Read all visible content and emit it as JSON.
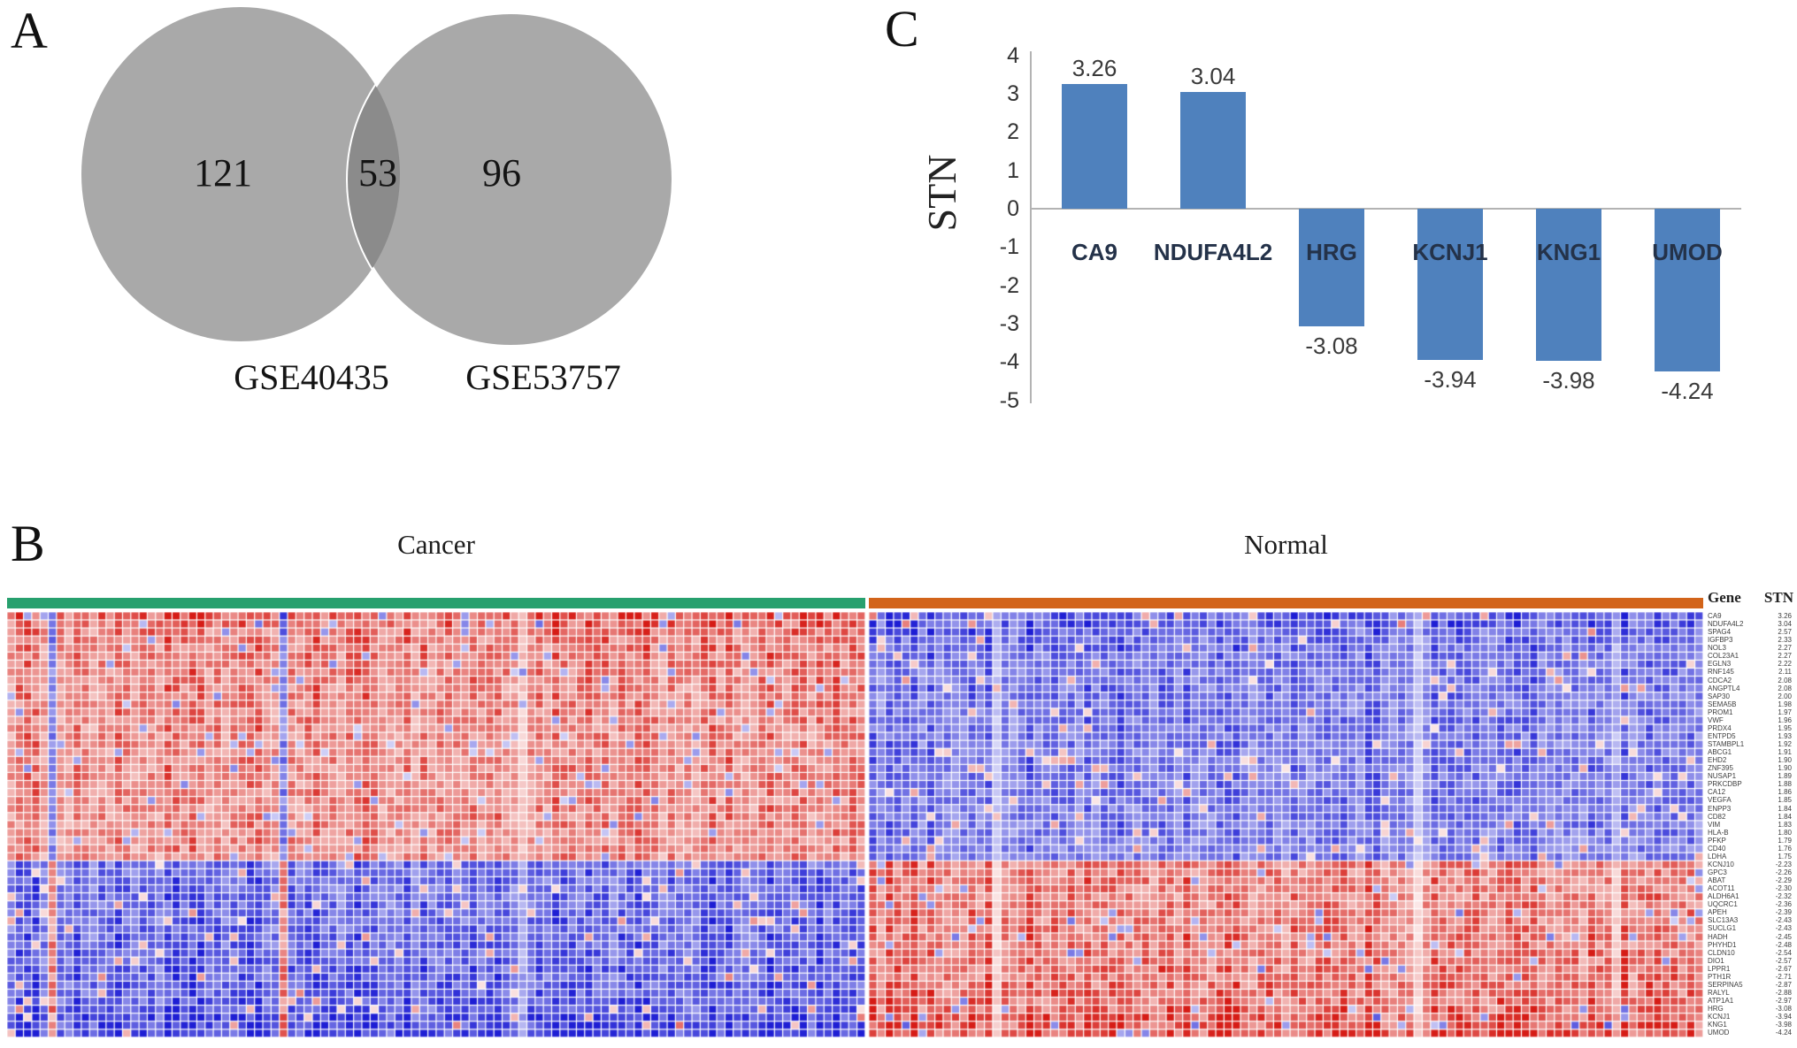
{
  "figure": {
    "panel_a": {
      "label": "A",
      "left_count": "121",
      "overlap_count": "53",
      "right_count": "96",
      "left_dataset": "GSE40435",
      "right_dataset": "GSE53757"
    },
    "panel_b": {
      "label": "B",
      "left_group": "Cancer",
      "right_group": "Normal",
      "gene_header": "Gene",
      "stn_header": "STN"
    },
    "panel_c": {
      "label": "C",
      "y_axis_label": "STN"
    }
  },
  "colors": {
    "venn_fill": "#a9a9a9",
    "venn_overlap": "#8b8b8b",
    "venn_divider": "#ffffff",
    "cancer_group": "#27a06e",
    "normal_group": "#d2641a",
    "bar_fill": "#4f81bd",
    "axis_gray": "#b3b3b3",
    "heat_red": "#d61c16",
    "heat_blue": "#1e1ed4"
  },
  "chart_data": [
    {
      "type": "venn",
      "sets": [
        "GSE40435",
        "GSE53757"
      ],
      "left_only": 121,
      "overlap": 53,
      "right_only": 96
    },
    {
      "type": "bar",
      "title": "",
      "xlabel": "",
      "ylabel": "STN",
      "ylim": [
        -5,
        4
      ],
      "yticks": [
        4,
        3,
        2,
        1,
        0,
        -1,
        -2,
        -3,
        -4,
        -5
      ],
      "grid": false,
      "legend": false,
      "categories": [
        "CA9",
        "NDUFA4L2",
        "HRG",
        "KCNJ1",
        "KNG1",
        "UMOD"
      ],
      "values": [
        3.26,
        3.04,
        -3.08,
        -3.94,
        -3.98,
        -4.24
      ],
      "value_labels": [
        "3.26",
        "3.04",
        "-3.08",
        "-3.94",
        "-3.98",
        "-4.24"
      ]
    },
    {
      "type": "heatmap",
      "col_groups": [
        {
          "label": "Cancer",
          "columns": 104
        },
        {
          "label": "Normal",
          "columns": 101
        }
      ],
      "legend_headers": [
        "Gene",
        "STN"
      ],
      "color_meaning": {
        "red": "high expression",
        "blue": "low expression"
      },
      "rows": [
        {
          "gene": "CA9",
          "stn": 3.26
        },
        {
          "gene": "NDUFA4L2",
          "stn": 3.04
        },
        {
          "gene": "SPAG4",
          "stn": 2.57
        },
        {
          "gene": "IGFBP3",
          "stn": 2.33
        },
        {
          "gene": "NOL3",
          "stn": 2.27
        },
        {
          "gene": "COL23A1",
          "stn": 2.27
        },
        {
          "gene": "EGLN3",
          "stn": 2.22
        },
        {
          "gene": "RNF145",
          "stn": 2.11
        },
        {
          "gene": "CDCA2",
          "stn": 2.08
        },
        {
          "gene": "ANGPTL4",
          "stn": 2.08
        },
        {
          "gene": "SAP30",
          "stn": 2.0
        },
        {
          "gene": "SEMA5B",
          "stn": 1.98
        },
        {
          "gene": "PROM1",
          "stn": 1.97
        },
        {
          "gene": "VWF",
          "stn": 1.96
        },
        {
          "gene": "PRDX4",
          "stn": 1.95
        },
        {
          "gene": "ENTPD5",
          "stn": 1.93
        },
        {
          "gene": "STAMBPL1",
          "stn": 1.92
        },
        {
          "gene": "ABCG1",
          "stn": 1.91
        },
        {
          "gene": "EHD2",
          "stn": 1.9
        },
        {
          "gene": "ZNF395",
          "stn": 1.9
        },
        {
          "gene": "NUSAP1",
          "stn": 1.89
        },
        {
          "gene": "PRKCDBP",
          "stn": 1.88
        },
        {
          "gene": "CA12",
          "stn": 1.86
        },
        {
          "gene": "VEGFA",
          "stn": 1.85
        },
        {
          "gene": "ENPP3",
          "stn": 1.84
        },
        {
          "gene": "CD82",
          "stn": 1.84
        },
        {
          "gene": "VIM",
          "stn": 1.83
        },
        {
          "gene": "HLA-B",
          "stn": 1.8
        },
        {
          "gene": "PFKP",
          "stn": 1.79
        },
        {
          "gene": "CD40",
          "stn": 1.76
        },
        {
          "gene": "LDHA",
          "stn": 1.75
        },
        {
          "gene": "KCNJ10",
          "stn": -2.23
        },
        {
          "gene": "GPC3",
          "stn": -2.26
        },
        {
          "gene": "ABAT",
          "stn": -2.29
        },
        {
          "gene": "ACOT11",
          "stn": -2.3
        },
        {
          "gene": "ALDH6A1",
          "stn": -2.32
        },
        {
          "gene": "UQCRC1",
          "stn": -2.36
        },
        {
          "gene": "APEH",
          "stn": -2.39
        },
        {
          "gene": "SLC13A3",
          "stn": -2.43
        },
        {
          "gene": "SUCLG1",
          "stn": -2.43
        },
        {
          "gene": "HADH",
          "stn": -2.45
        },
        {
          "gene": "PHYHD1",
          "stn": -2.48
        },
        {
          "gene": "CLDN10",
          "stn": -2.54
        },
        {
          "gene": "DIO1",
          "stn": -2.57
        },
        {
          "gene": "LPPR1",
          "stn": -2.67
        },
        {
          "gene": "PTH1R",
          "stn": -2.71
        },
        {
          "gene": "SERPINA5",
          "stn": -2.87
        },
        {
          "gene": "RALYL",
          "stn": -2.88
        },
        {
          "gene": "ATP1A1",
          "stn": -2.97
        },
        {
          "gene": "HRG",
          "stn": -3.08
        },
        {
          "gene": "KCNJ1",
          "stn": -3.94
        },
        {
          "gene": "KNG1",
          "stn": -3.98
        },
        {
          "gene": "UMOD",
          "stn": -4.24
        }
      ]
    }
  ]
}
